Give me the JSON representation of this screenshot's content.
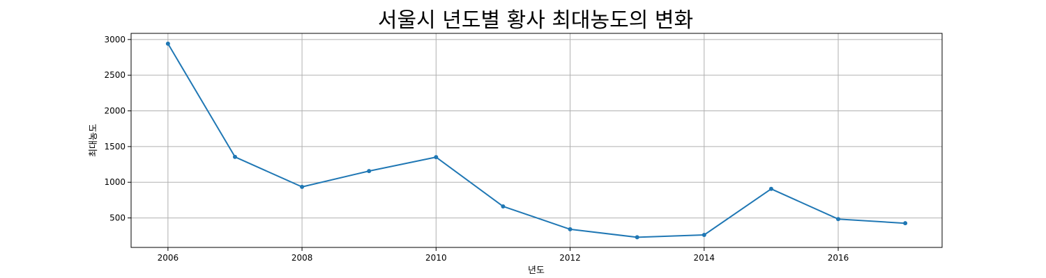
{
  "chart_data": {
    "type": "line",
    "title": "서울시 년도별 황사 최대농도의 변화",
    "xlabel": "년도",
    "ylabel": "최대농도",
    "x": [
      2006,
      2007,
      2008,
      2009,
      2010,
      2011,
      2012,
      2013,
      2014,
      2015,
      2016,
      2017
    ],
    "series": [
      {
        "values": [
          2941,
          1355,
          935,
          1157,
          1352,
          662,
          341,
          229,
          262,
          907,
          484,
          426
        ],
        "color": "#1f77b4",
        "marker": "circle"
      }
    ],
    "xticks": [
      2006,
      2008,
      2010,
      2012,
      2014,
      2016
    ],
    "yticks": [
      500,
      1000,
      1500,
      2000,
      2500,
      3000
    ],
    "xlim": [
      2005.45,
      2017.55
    ],
    "ylim": [
      87,
      3086
    ],
    "grid": true
  }
}
